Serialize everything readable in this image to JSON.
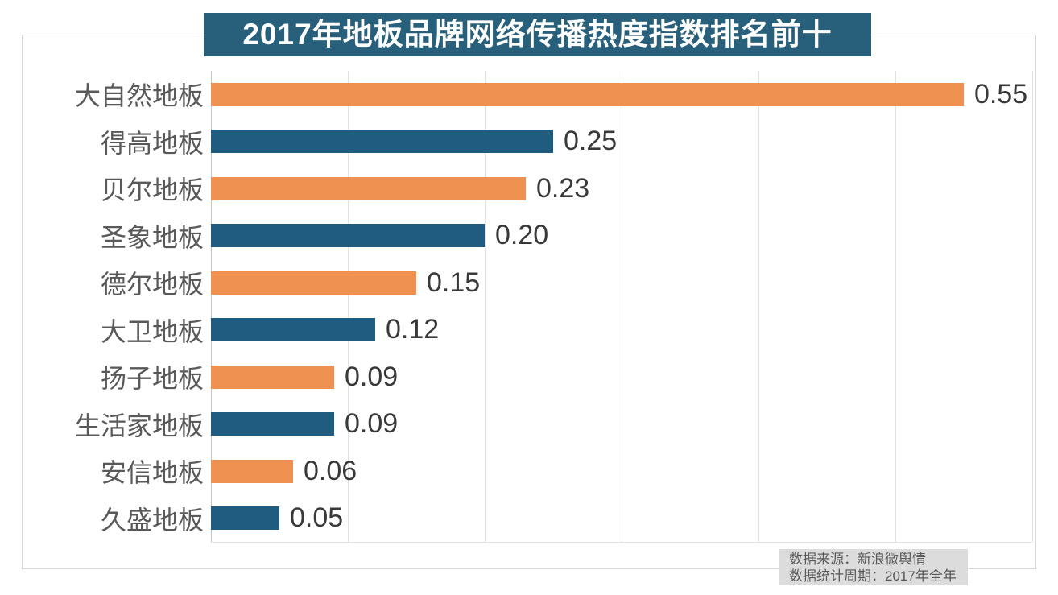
{
  "chart_data": {
    "type": "bar",
    "orientation": "horizontal",
    "title": "2017年地板品牌网络传播热度指数排名前十",
    "categories": [
      "大自然地板",
      "得高地板",
      "贝尔地板",
      "圣象地板",
      "德尔地板",
      "大卫地板",
      "扬子地板",
      "生活家地板",
      "安信地板",
      "久盛地板"
    ],
    "values": [
      0.55,
      0.25,
      0.23,
      0.2,
      0.15,
      0.12,
      0.09,
      0.09,
      0.06,
      0.05
    ],
    "value_labels": [
      "0.55",
      "0.25",
      "0.23",
      "0.20",
      "0.15",
      "0.12",
      "0.09",
      "0.09",
      "0.06",
      "0.05"
    ],
    "xlabel": "",
    "ylabel": "",
    "xlim": [
      0,
      0.6
    ],
    "gridline_step": 0.1,
    "grid": true,
    "legend_position": "none",
    "bar_colors_alternating": [
      "#ef9150",
      "#1f5c7f"
    ]
  },
  "footer": {
    "source": "数据来源：新浪微舆情",
    "period": "数据统计周期：2017年全年"
  },
  "colors": {
    "banner_bg": "#28607b",
    "orange_bar": "#ef9150",
    "blue_bar": "#1f5c7f",
    "gridline": "#e2e2e2",
    "axis_line": "#c8c8c8",
    "frame_border": "#d9d9d9",
    "category_text": "#595959",
    "value_text": "#393939",
    "source_bg": "#dcdcdc",
    "source_text": "#595959"
  }
}
